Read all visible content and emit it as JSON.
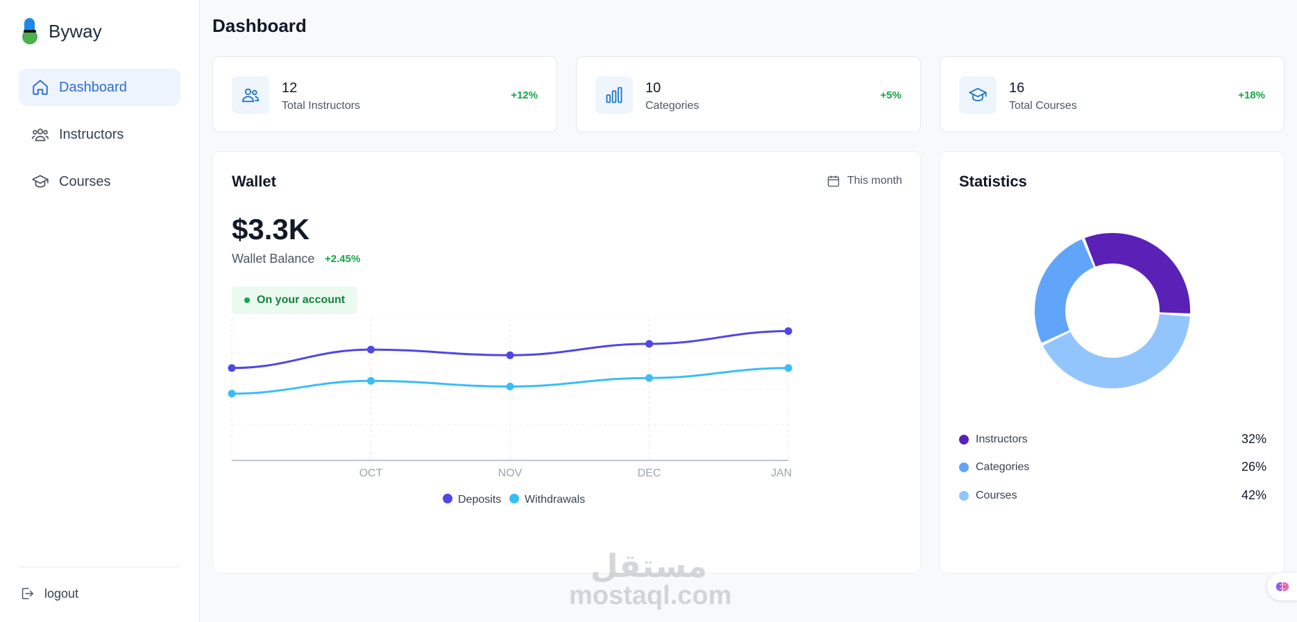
{
  "app": {
    "name": "Byway"
  },
  "sidebar": {
    "items": [
      {
        "label": "Dashboard",
        "icon": "home-icon",
        "active": true
      },
      {
        "label": "Instructors",
        "icon": "users-icon",
        "active": false
      },
      {
        "label": "Courses",
        "icon": "graduation-cap-icon",
        "active": false
      }
    ],
    "logout_label": "logout"
  },
  "page": {
    "title": "Dashboard"
  },
  "stats_cards": [
    {
      "value": "12",
      "label": "Total Instructors",
      "change": "+12%",
      "icon": "users-icon"
    },
    {
      "value": "10",
      "label": "Categories",
      "change": "+5%",
      "icon": "bar-chart-icon"
    },
    {
      "value": "16",
      "label": "Total Courses",
      "change": "+18%",
      "icon": "graduation-cap-icon"
    }
  ],
  "wallet": {
    "title": "Wallet",
    "period": "This month",
    "balance": "$3.3K",
    "balance_label": "Wallet Balance",
    "balance_change": "+2.45%",
    "account_badge": "On your account"
  },
  "statistics": {
    "title": "Statistics",
    "legend": [
      {
        "label": "Instructors",
        "pct": "32%"
      },
      {
        "label": "Categories",
        "pct": "26%"
      },
      {
        "label": "Courses",
        "pct": "42%"
      }
    ]
  },
  "watermark": {
    "arabic": "مستقل",
    "latin": "mostaql.com"
  },
  "colors": {
    "accent": "#2e6bd6",
    "positive": "#16a34a",
    "deposits": "#4f46e5",
    "withdrawals": "#38bdf8",
    "instructors": "#5b21b6",
    "categories": "#60a5fa",
    "courses": "#93c5fd"
  },
  "chart_data": [
    {
      "type": "line",
      "categories": [
        "",
        "OCT",
        "NOV",
        "DEC",
        "JAN"
      ],
      "series": [
        {
          "name": "Deposits",
          "values": [
            65,
            78,
            74,
            82,
            91
          ]
        },
        {
          "name": "Withdrawals",
          "values": [
            47,
            56,
            52,
            58,
            65
          ]
        }
      ],
      "ylim": [
        0,
        100
      ],
      "grid": true,
      "legend": "bottom"
    },
    {
      "type": "pie",
      "categories": [
        "Instructors",
        "Categories",
        "Courses"
      ],
      "values": [
        32,
        26,
        42
      ],
      "legend": "bottom"
    }
  ]
}
